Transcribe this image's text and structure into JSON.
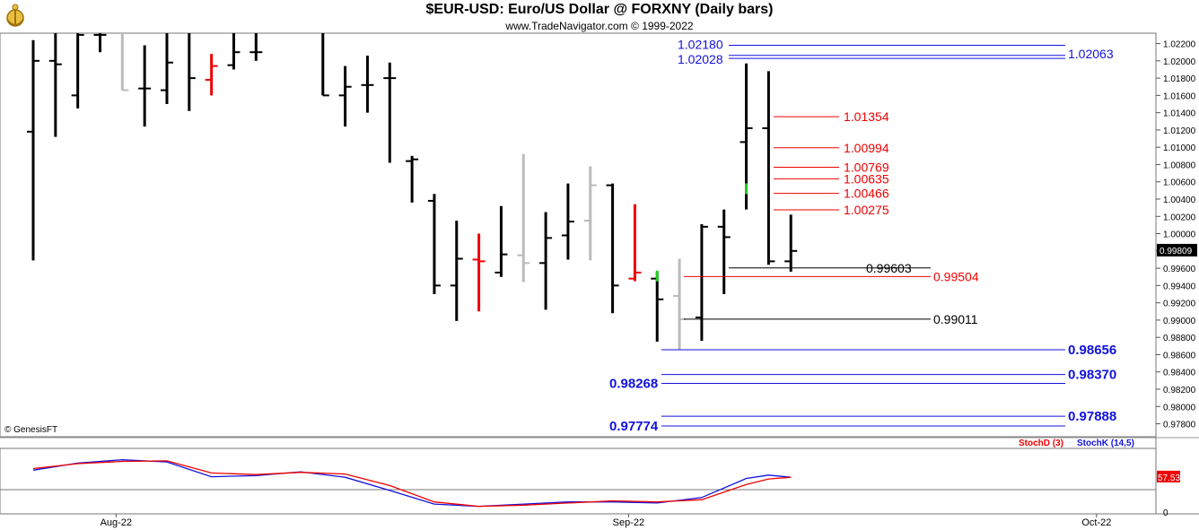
{
  "header": {
    "title": "$EUR-USD:  Euro/US Dollar @ FORXNY  (Daily bars)",
    "subtitle": "www.TradeNavigator.com © 1999-2022",
    "copyright": "© GenesisFT"
  },
  "colors": {
    "up_bar": "#000000",
    "inside_bar": "#bbbbbb",
    "red_bar": "#ee0000",
    "green_tick": "#22cc22",
    "blue_line": "#1111dd",
    "red_line": "#ee0000",
    "stoch_d": "#ee0000",
    "stoch_k": "#1111cc"
  },
  "chart_data": [
    {
      "type": "bar",
      "subtype": "ohlc",
      "ylim": [
        0.9765,
        1.0232
      ],
      "y_ticks": [
        "1.02200",
        "1.02000",
        "1.01800",
        "1.01600",
        "1.01400",
        "1.01200",
        "1.01000",
        "1.00800",
        "1.00600",
        "1.00400",
        "1.00200",
        "1.00000",
        "0.99800",
        "0.99600",
        "0.99400",
        "0.99200",
        "0.99000",
        "0.98800",
        "0.98600",
        "0.98400",
        "0.98200",
        "0.98000",
        "0.97800"
      ],
      "x_ticks": [
        {
          "label": "Aug-22",
          "day": 4
        },
        {
          "label": "Sep-22",
          "day": 27
        },
        {
          "label": "Oct-22",
          "day": 48
        }
      ],
      "last_price": "0.99809",
      "last_value": 0.99809,
      "bars": [
        {
          "day": 0,
          "o": 1.0118,
          "h": 1.0224,
          "l": 0.9969,
          "c": 1.02,
          "color": "black",
          "ticks": "oc"
        },
        {
          "day": 1,
          "o": 1.02,
          "h": 1.0238,
          "l": 1.0112,
          "c": 1.0196,
          "color": "black",
          "ticks": "oc"
        },
        {
          "day": 2,
          "o": 1.016,
          "h": 1.024,
          "l": 1.0145,
          "c": 1.023,
          "color": "black",
          "ticks": "oc"
        },
        {
          "day": 3,
          "o": 1.023,
          "h": 1.024,
          "l": 1.021,
          "c": 1.023,
          "color": "black",
          "ticks": "oc"
        },
        {
          "day": 4,
          "o": 1.023,
          "h": 1.024,
          "l": 1.0166,
          "c": 1.0166,
          "color": "gray",
          "ticks": "c"
        },
        {
          "day": 5,
          "o": 1.0168,
          "h": 1.0218,
          "l": 1.0124,
          "c": 1.0168,
          "color": "black",
          "ticks": "oc"
        },
        {
          "day": 6,
          "o": 1.0166,
          "h": 1.0238,
          "l": 1.015,
          "c": 1.0198,
          "color": "black",
          "ticks": "oc"
        },
        {
          "day": 7,
          "o": 1.024,
          "h": 1.024,
          "l": 1.0142,
          "c": 1.018,
          "color": "black",
          "ticks": "oc"
        },
        {
          "day": 8,
          "o": 1.0178,
          "h": 1.0208,
          "l": 1.016,
          "c": 1.0194,
          "color": "red",
          "ticks": "oc"
        },
        {
          "day": 9,
          "o": 1.0195,
          "h": 1.024,
          "l": 1.019,
          "c": 1.021,
          "color": "black",
          "ticks": "oc"
        },
        {
          "day": 10,
          "o": 1.021,
          "h": 1.024,
          "l": 1.02,
          "c": 1.021,
          "color": "black",
          "ticks": "oc"
        },
        {
          "day": 13,
          "o": 1.024,
          "h": 1.024,
          "l": 1.016,
          "c": 1.016,
          "color": "black",
          "ticks": "oc"
        },
        {
          "day": 14,
          "o": 1.016,
          "h": 1.0194,
          "l": 1.0124,
          "c": 1.017,
          "color": "black",
          "ticks": "oc"
        },
        {
          "day": 15,
          "o": 1.0172,
          "h": 1.0206,
          "l": 1.014,
          "c": 1.0172,
          "color": "black",
          "ticks": "oc"
        },
        {
          "day": 16,
          "o": 1.018,
          "h": 1.0198,
          "l": 1.0082,
          "c": 1.018,
          "color": "black",
          "ticks": "oc"
        },
        {
          "day": 17,
          "o": 1.0084,
          "h": 1.009,
          "l": 1.0036,
          "c": 1.0086,
          "color": "black",
          "ticks": "oc"
        },
        {
          "day": 18,
          "o": 1.0038,
          "h": 1.0046,
          "l": 0.993,
          "c": 0.994,
          "color": "black",
          "ticks": "oc"
        },
        {
          "day": 19,
          "o": 0.994,
          "h": 1.0015,
          "l": 0.9899,
          "c": 0.9971,
          "color": "black",
          "ticks": "oc"
        },
        {
          "day": 20,
          "o": 0.997,
          "h": 1.0,
          "l": 0.991,
          "c": 0.9968,
          "color": "red",
          "ticks": "oc"
        },
        {
          "day": 21,
          "o": 0.9955,
          "h": 1.0032,
          "l": 0.995,
          "c": 0.9976,
          "color": "black",
          "ticks": "oc"
        },
        {
          "day": 22,
          "o": 0.9975,
          "h": 1.0092,
          "l": 0.9944,
          "c": 0.9966,
          "color": "gray",
          "ticks": "oc"
        },
        {
          "day": 23,
          "o": 0.9966,
          "h": 1.0025,
          "l": 0.9912,
          "c": 0.9995,
          "color": "black",
          "ticks": "oc"
        },
        {
          "day": 24,
          "o": 0.9998,
          "h": 1.0058,
          "l": 0.997,
          "c": 1.0014,
          "color": "black",
          "ticks": "oc"
        },
        {
          "day": 25,
          "o": 1.0015,
          "h": 1.0078,
          "l": 0.9969,
          "c": 1.0056,
          "color": "gray",
          "ticks": "oc"
        },
        {
          "day": 26,
          "o": 1.0056,
          "h": 1.0058,
          "l": 0.9908,
          "c": 0.994,
          "color": "black",
          "ticks": "oc"
        },
        {
          "day": 27,
          "o": 0.9948,
          "h": 1.0034,
          "l": 0.9945,
          "c": 0.9955,
          "color": "red",
          "ticks": "oc"
        },
        {
          "day": 28,
          "o": 0.9948,
          "h": 0.9955,
          "l": 0.9875,
          "c": 0.9924,
          "color": "black",
          "ticks": "oc",
          "green_tick": 0.9951
        },
        {
          "day": 29,
          "o": 0.9928,
          "h": 0.9971,
          "l": 0.9866,
          "c": 0.9901,
          "color": "gray",
          "ticks": "oc"
        },
        {
          "day": 30,
          "o": 0.9903,
          "h": 1.0011,
          "l": 0.9876,
          "c": 1.0008,
          "color": "black",
          "ticks": "oc"
        },
        {
          "day": 31,
          "o": 1.0008,
          "h": 1.0028,
          "l": 0.993,
          "c": 0.9996,
          "color": "black",
          "ticks": "oc"
        },
        {
          "day": 32,
          "o": 1.0106,
          "h": 1.0197,
          "l": 1.0028,
          "c": 1.0122,
          "color": "black",
          "ticks": "oc",
          "green_tick": 1.0052
        },
        {
          "day": 33,
          "o": 1.0122,
          "h": 1.0188,
          "l": 0.9964,
          "c": 0.9968,
          "color": "black",
          "ticks": "oc"
        },
        {
          "day": 34,
          "o": 0.9968,
          "h": 1.0022,
          "l": 0.9956,
          "c": 0.998,
          "color": "black",
          "ticks": "oc"
        }
      ],
      "levels": [
        {
          "value": 1.0218,
          "label": "1.02180",
          "color": "blue",
          "side": "left",
          "bold": false
        },
        {
          "value": 1.02028,
          "label": "1.02028",
          "color": "blue",
          "side": "left",
          "bold": false
        },
        {
          "value": 1.02063,
          "label": "1.02063",
          "color": "blue",
          "side": "right",
          "bold": false
        },
        {
          "value": 1.01354,
          "label": "1.01354",
          "color": "red",
          "side": "right",
          "bold": false
        },
        {
          "value": 1.00994,
          "label": "1.00994",
          "color": "red",
          "side": "right",
          "bold": false
        },
        {
          "value": 1.00769,
          "label": "1.00769",
          "color": "red",
          "side": "right",
          "bold": false
        },
        {
          "value": 1.00635,
          "label": "1.00635",
          "color": "red",
          "side": "right",
          "bold": false
        },
        {
          "value": 1.00466,
          "label": "1.00466",
          "color": "red",
          "side": "right",
          "bold": false
        },
        {
          "value": 1.00275,
          "label": "1.00275",
          "color": "red",
          "side": "right",
          "bold": false
        },
        {
          "value": 0.99603,
          "label": "0.99603",
          "color": "black",
          "side": "right",
          "bold": false
        },
        {
          "value": 0.99504,
          "label": "0.99504",
          "color": "red",
          "side": "right",
          "bold": false
        },
        {
          "value": 0.99011,
          "label": "0.99011",
          "color": "black",
          "side": "right",
          "bold": false
        },
        {
          "value": 0.98656,
          "label": "0.98656",
          "color": "blue",
          "side": "right",
          "bold": true
        },
        {
          "value": 0.9837,
          "label": "0.98370",
          "color": "blue",
          "side": "right",
          "bold": true
        },
        {
          "value": 0.98268,
          "label": "0.98268",
          "color": "blue",
          "side": "left",
          "bold": true
        },
        {
          "value": 0.97888,
          "label": "0.97888",
          "color": "blue",
          "side": "right",
          "bold": true
        },
        {
          "value": 0.97774,
          "label": "0.97774",
          "color": "blue",
          "side": "left",
          "bold": true
        }
      ]
    },
    {
      "type": "line",
      "ylim": [
        0,
        100
      ],
      "y_ticks": [
        "0"
      ],
      "last_value_label": "57.53",
      "last_value": 57.53,
      "series": [
        {
          "name": "StochD (3)",
          "color": "red",
          "x": [
            0,
            2,
            4,
            6,
            8,
            10,
            12,
            14,
            16,
            18,
            20,
            22,
            24,
            26,
            28,
            30,
            32,
            33,
            34
          ],
          "values": [
            73,
            82,
            86,
            87,
            65,
            62,
            66,
            63,
            42,
            12,
            4,
            6,
            10,
            14,
            12,
            16,
            44,
            54,
            57
          ]
        },
        {
          "name": "StochK (14,5)",
          "color": "blue",
          "x": [
            0,
            2,
            4,
            6,
            8,
            10,
            12,
            14,
            16,
            18,
            20,
            22,
            24,
            26,
            28,
            30,
            32,
            33,
            34
          ],
          "values": [
            70,
            83,
            89,
            85,
            58,
            60,
            67,
            57,
            33,
            8,
            4,
            8,
            12,
            12,
            10,
            20,
            55,
            61,
            57
          ]
        }
      ]
    }
  ]
}
